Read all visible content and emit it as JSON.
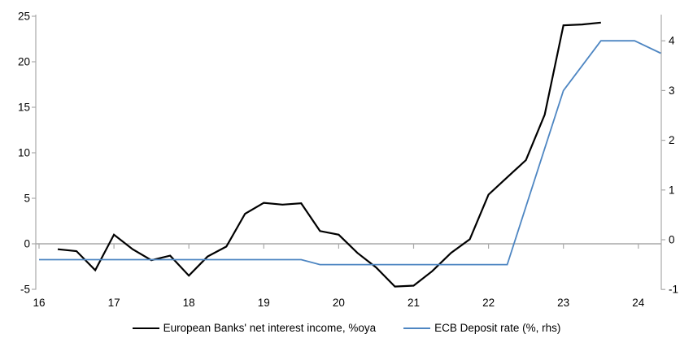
{
  "chart_data": {
    "type": "line",
    "title": "",
    "grid": "zero-line-only",
    "legend_position": "bottom-center",
    "x_axis": {
      "tick_values": [
        16,
        17,
        18,
        19,
        20,
        21,
        22,
        23,
        24
      ],
      "tick_labels": [
        "16",
        "17",
        "18",
        "19",
        "20",
        "21",
        "22",
        "23",
        "24"
      ],
      "range": [
        16,
        24.3
      ]
    },
    "y_axis_left": {
      "tick_values": [
        25,
        20,
        15,
        10,
        5,
        0,
        -5
      ],
      "range": [
        -5,
        25
      ]
    },
    "y_axis_right": {
      "tick_values": [
        4,
        3,
        2,
        1,
        0,
        -1
      ],
      "range": [
        -1,
        4.5
      ]
    },
    "series": [
      {
        "name": "European Banks' net interest income, %oya",
        "axis": "left",
        "color": "#000000",
        "stroke_width": 2.2,
        "x": [
          16.25,
          16.5,
          16.75,
          17.0,
          17.25,
          17.5,
          17.75,
          18.0,
          18.25,
          18.5,
          18.75,
          19.0,
          19.25,
          19.5,
          19.75,
          20.0,
          20.25,
          20.5,
          20.75,
          21.0,
          21.25,
          21.5,
          21.75,
          22.0,
          22.25,
          22.5,
          22.75,
          23.0,
          23.25,
          23.5
        ],
        "values": [
          -0.6,
          -0.8,
          -2.9,
          1.0,
          -0.6,
          -1.8,
          -1.3,
          -3.5,
          -1.4,
          -0.3,
          3.3,
          4.5,
          4.3,
          4.45,
          1.4,
          1.0,
          -1.0,
          -2.6,
          -4.7,
          -4.6,
          -3.0,
          -1.0,
          0.5,
          5.4,
          7.3,
          9.2,
          14.2,
          24.0,
          24.1,
          24.3
        ]
      },
      {
        "name": "ECB Deposit rate (%, rhs)",
        "axis": "right",
        "color": "#4e86c2",
        "stroke_width": 1.8,
        "x": [
          16.0,
          19.5,
          19.75,
          22.25,
          23.0,
          23.5,
          23.95,
          24.3
        ],
        "values": [
          -0.4,
          -0.4,
          -0.5,
          -0.5,
          3.0,
          4.0,
          4.0,
          3.75
        ]
      }
    ],
    "colors": {
      "axis": "#a9a9a9",
      "background": "#ffffff"
    }
  }
}
